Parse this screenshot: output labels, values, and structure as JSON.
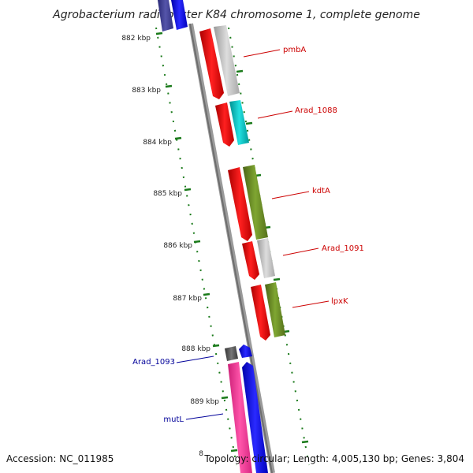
{
  "title": "Agrobacterium radiobacter K84 chromosome 1, complete genome",
  "footer": {
    "accession": "Accession: NC_011985",
    "summary": "Topology: circular; Length: 4,005,130 bp; Genes: 3,804"
  },
  "ticks": [
    "882 kbp",
    "883 kbp",
    "884 kbp",
    "885 kbp",
    "886 kbp",
    "887 kbp",
    "888 kbp",
    "889 kbp",
    "8"
  ],
  "labels": {
    "pmbA": "pmbA",
    "arad1088": "Arad_1088",
    "kdtA": "kdtA",
    "arad1091": "Arad_1091",
    "lpxK": "lpxK",
    "arad1093": "Arad_1093",
    "mutL": "mutL"
  },
  "colors": {
    "cds": "#ff0000",
    "gray": "#bbbbbb",
    "cyan": "#00cccc",
    "olive": "#6b8e23",
    "pink": "#ff3399",
    "blue": "#0000ff",
    "darkgray": "#555555",
    "navy": "#3d3d99",
    "tick": "#1a7a1a",
    "red_label": "#cc0000",
    "blue_label": "#000099"
  }
}
